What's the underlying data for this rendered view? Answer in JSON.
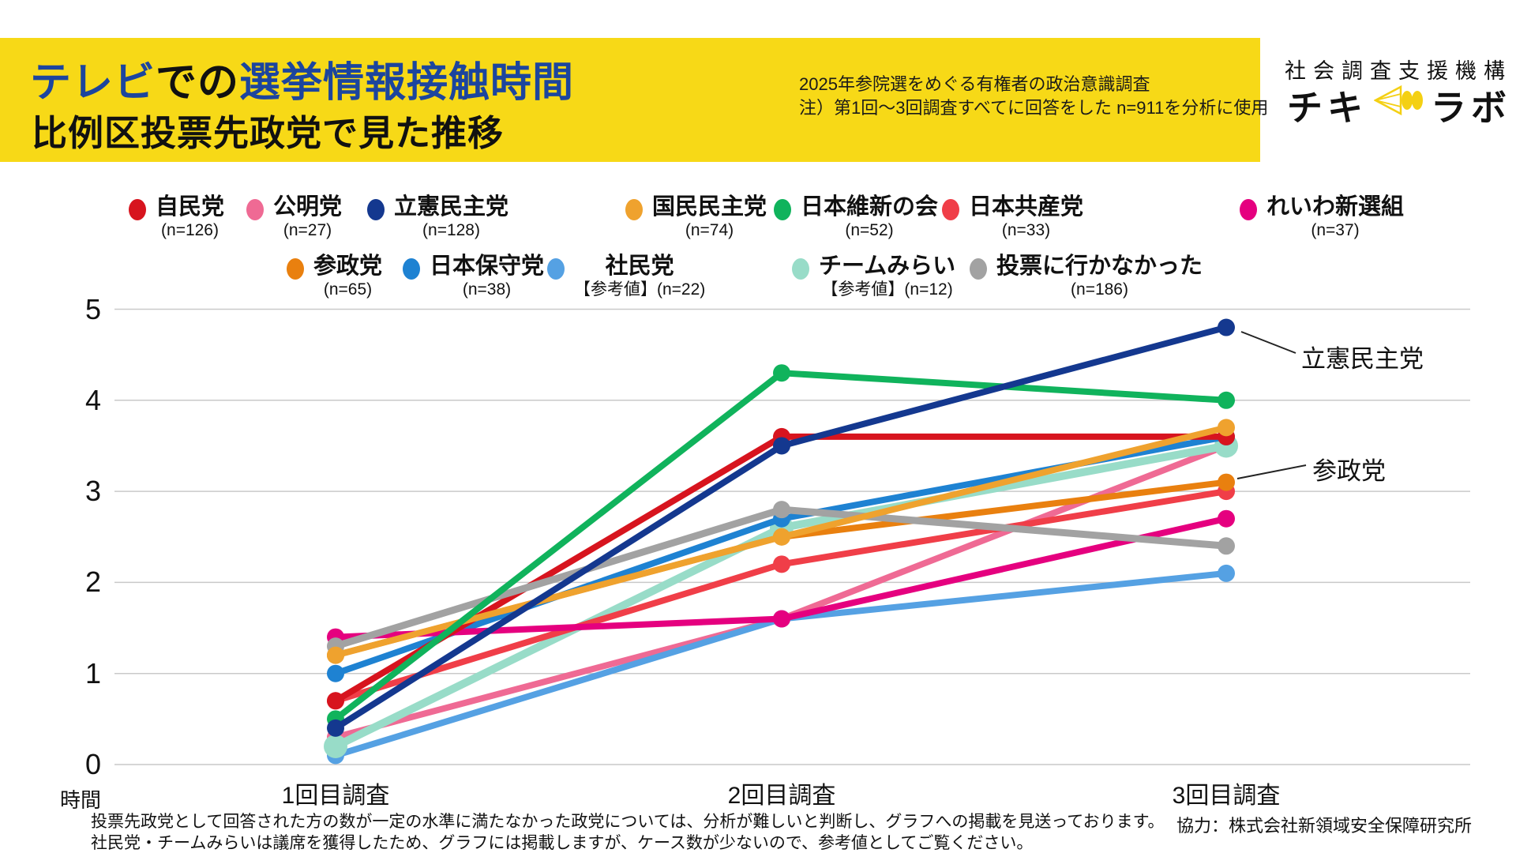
{
  "header": {
    "title_seg1": "テレビ",
    "title_seg2": "での",
    "title_seg3": "選挙情報接触時間",
    "subtitle": "比例区投票先政党で見た推移",
    "note_line1": "2025年参院選をめぐる有権者の政治意識調査",
    "note_line2": "注）第1回〜3回調査すべてに回答をした n=911を分析に使用",
    "banner_color": "#f7d917",
    "accent_blue": "#1c459e"
  },
  "logo": {
    "org": "社会調査支援機構",
    "name_left": "チキ",
    "name_right": "ラボ",
    "icon": "megaphone-icon",
    "icon_color": "#f4d013"
  },
  "legend": {
    "rows": [
      [
        {
          "name": "自民党",
          "sub": "(n=126)",
          "color": "#d7141e"
        },
        {
          "name": "公明党",
          "sub": "(n=27)",
          "color": "#ef6a94"
        },
        {
          "name": "立憲民主党",
          "sub": "(n=128)",
          "color": "#14388f"
        },
        {
          "name": "国民民主党",
          "sub": "(n=74)",
          "color": "#efa22e"
        },
        {
          "name": "日本維新の会",
          "sub": "(n=52)",
          "color": "#10b35c"
        },
        {
          "name": "日本共産党",
          "sub": "(n=33)",
          "color": "#f03e48"
        },
        {
          "name": "れいわ新選組",
          "sub": "(n=37)",
          "color": "#e5007f"
        }
      ],
      [
        {
          "name": "参政党",
          "sub": "(n=65)",
          "color": "#e9800f"
        },
        {
          "name": "日本保守党",
          "sub": "(n=38)",
          "color": "#1e82d2"
        },
        {
          "name": "社民党",
          "sub": "【参考値】(n=22)",
          "color": "#55a1e3"
        },
        {
          "name": "チームみらい",
          "sub": "【参考値】(n=12)",
          "color": "#98dcc8"
        },
        {
          "name": "投票に行かなかった",
          "sub": "(n=186)",
          "color": "#a2a2a2"
        }
      ]
    ]
  },
  "chart_data": {
    "type": "line",
    "title": "テレビでの選挙情報接触時間 比例区投票先政党で見た推移",
    "x_categories": [
      "1回目調査",
      "2回目調査",
      "3回目調査"
    ],
    "y_ticks": [
      0,
      1,
      2,
      3,
      4,
      5
    ],
    "ylim": [
      0,
      5
    ],
    "ylabel": "時間",
    "grid": true,
    "legend_position": "top",
    "series": [
      {
        "name": "公明党",
        "color": "#ef6a94",
        "values": [
          0.3,
          1.6,
          3.5
        ]
      },
      {
        "name": "社民党",
        "color": "#55a1e3",
        "values": [
          0.1,
          1.6,
          2.1
        ]
      },
      {
        "name": "チームみらい",
        "color": "#98dcc8",
        "values": [
          0.2,
          2.6,
          3.5
        ],
        "width": 10,
        "dot_r": 15
      },
      {
        "name": "日本保守党",
        "color": "#1e82d2",
        "values": [
          1.0,
          2.7,
          3.6
        ]
      },
      {
        "name": "日本共産党",
        "color": "#f03e48",
        "values": [
          0.7,
          2.2,
          3.0
        ]
      },
      {
        "name": "参政党",
        "color": "#e9800f",
        "values": [
          1.2,
          2.5,
          3.1
        ]
      },
      {
        "name": "れいわ新選組",
        "color": "#e5007f",
        "values": [
          1.4,
          1.6,
          2.7
        ]
      },
      {
        "name": "自民党",
        "color": "#d7141e",
        "values": [
          0.7,
          3.6,
          3.6
        ]
      },
      {
        "name": "投票に行かなかった",
        "color": "#a2a2a2",
        "values": [
          1.3,
          2.8,
          2.4
        ],
        "width": 9
      },
      {
        "name": "国民民主党",
        "color": "#efa22e",
        "values": [
          1.2,
          2.5,
          3.7
        ]
      },
      {
        "name": "日本維新の会",
        "color": "#10b35c",
        "values": [
          0.5,
          4.3,
          4.0
        ]
      },
      {
        "name": "立憲民主党",
        "color": "#14388f",
        "values": [
          0.4,
          3.5,
          4.8
        ]
      }
    ],
    "annotations": [
      {
        "text": "立憲民主党"
      },
      {
        "text": "参政党"
      }
    ]
  },
  "footer": {
    "left_line1": "投票先政党として回答された方の数が一定の水準に満たなかった政党については、分析が難しいと判断し、グラフへの掲載を見送っております。",
    "left_line2": "社民党・チームみらいは議席を獲得したため、グラフには掲載しますが、ケース数が少ないので、参考値としてご覧ください。",
    "right": "協力：株式会社新領域安全保障研究所"
  }
}
